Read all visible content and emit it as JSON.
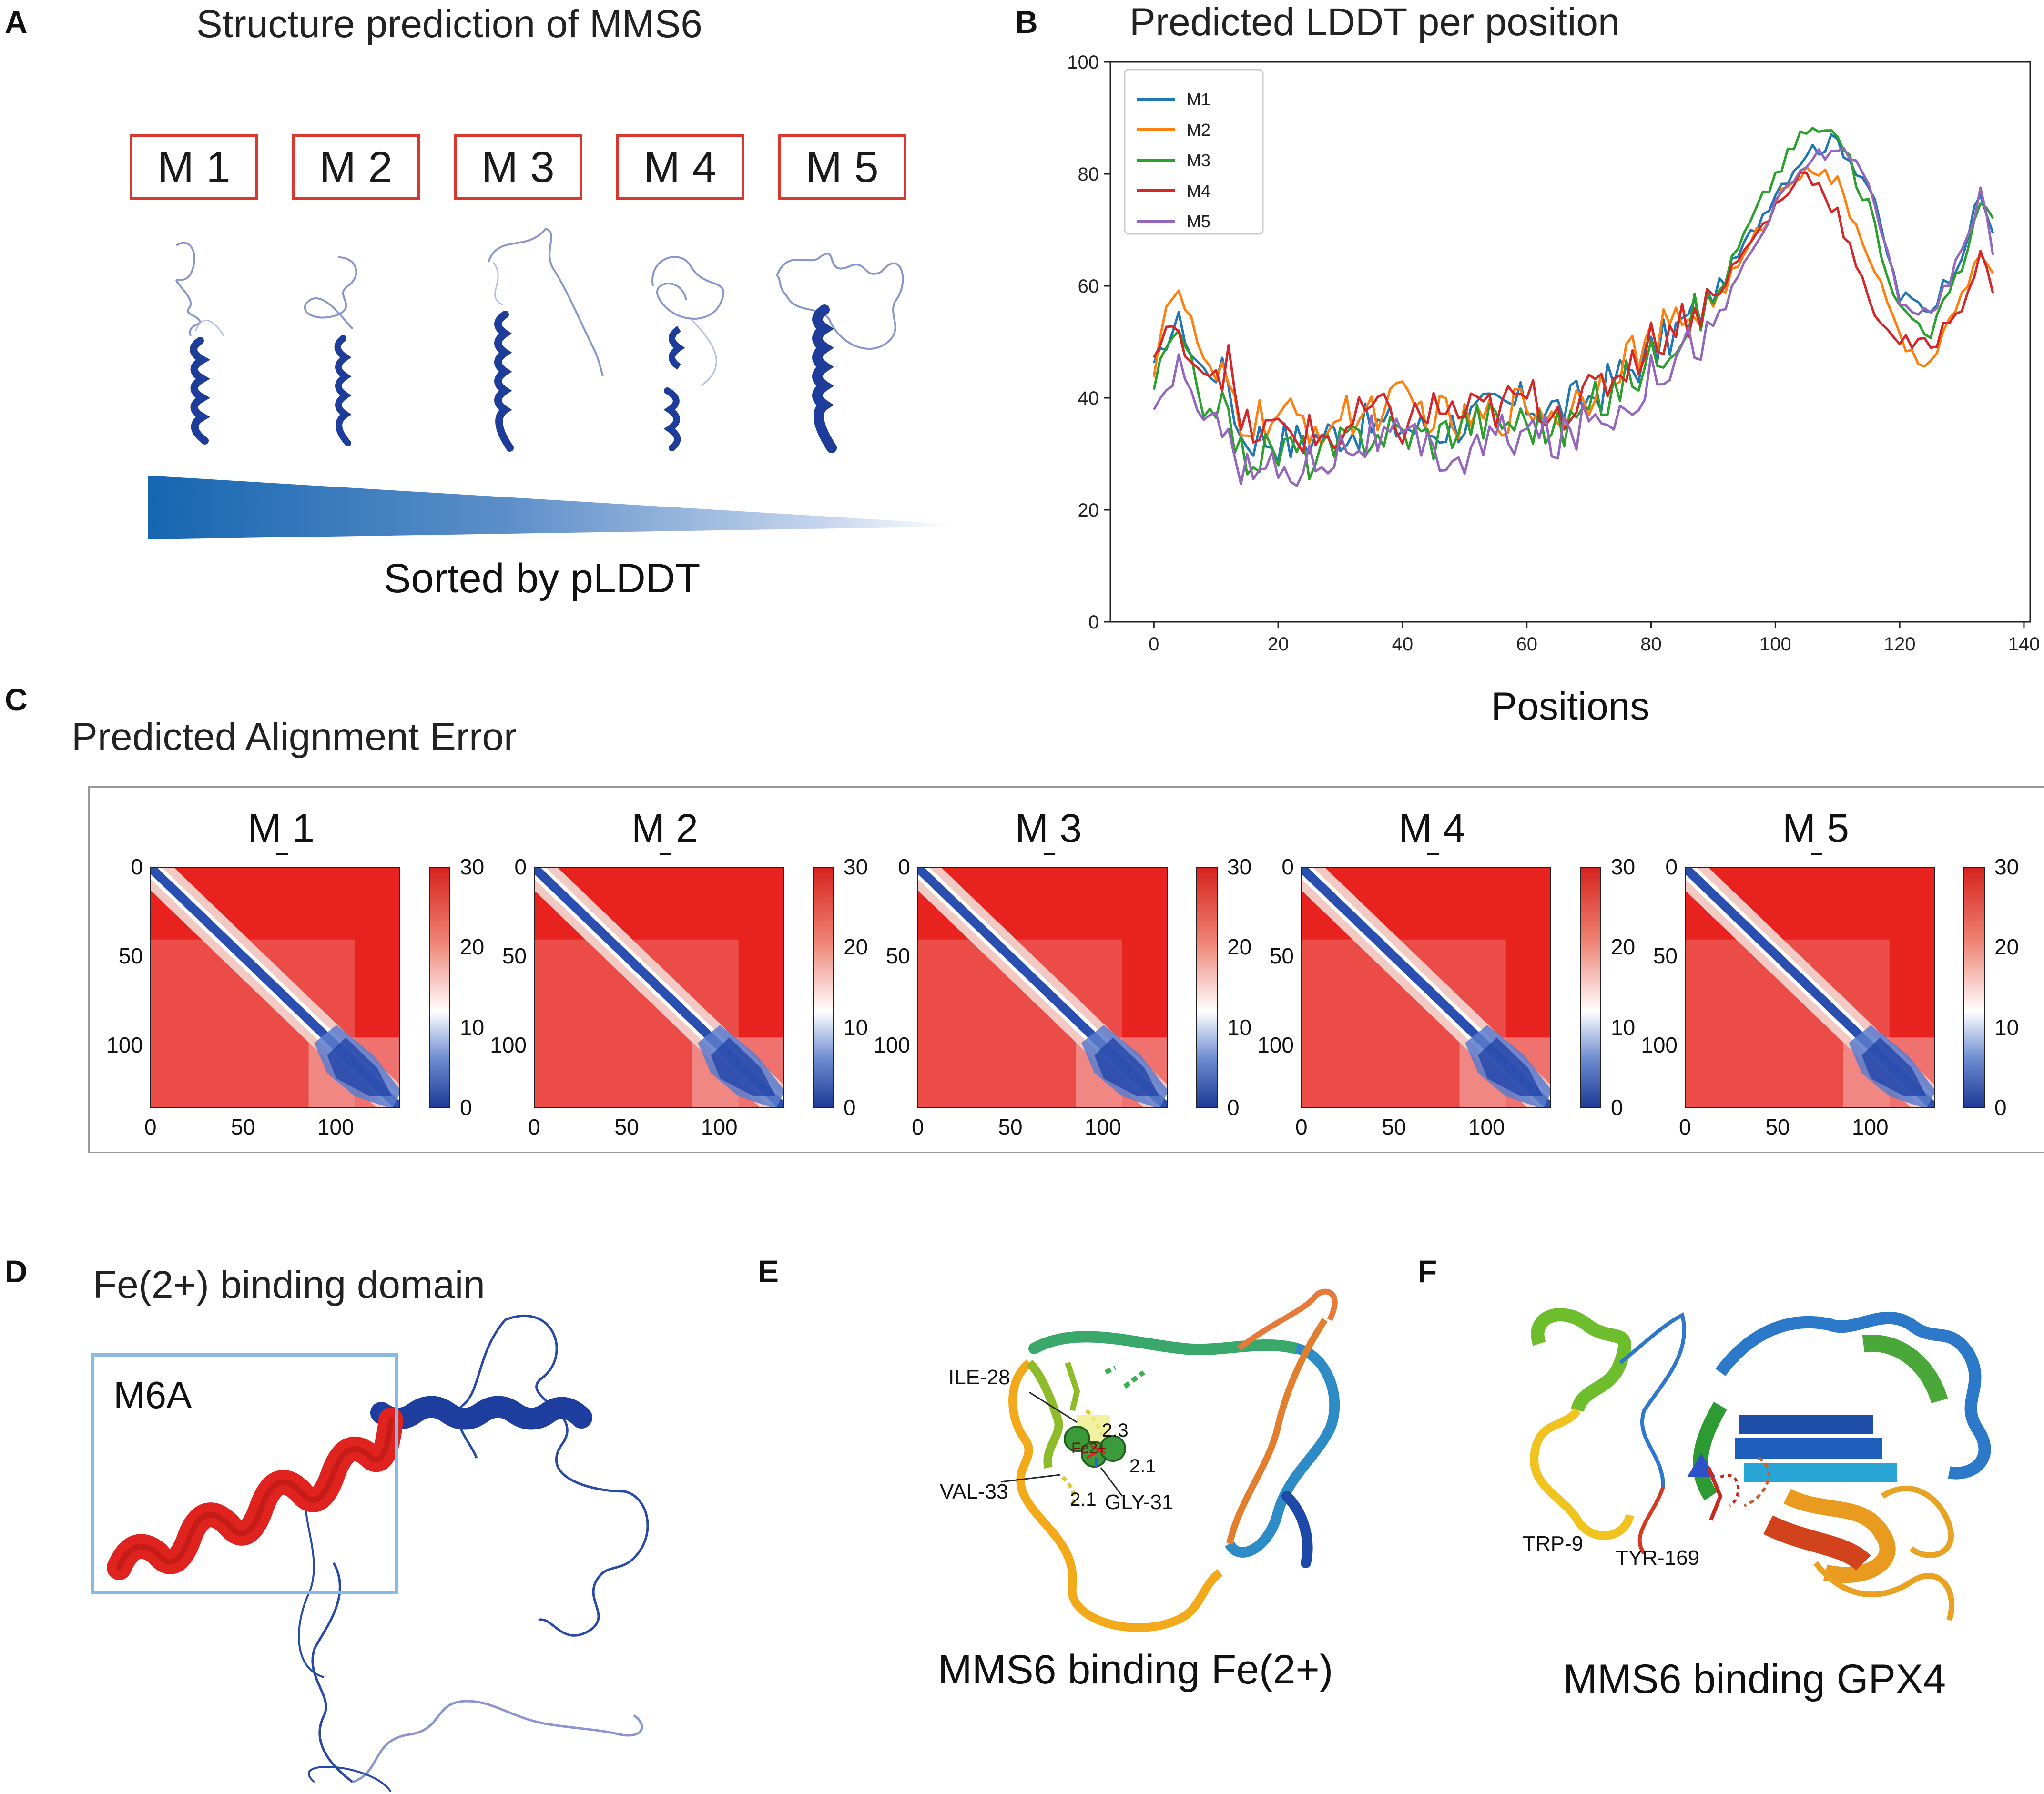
{
  "panels": {
    "A": {
      "letter": "A",
      "title": "Structure prediction of MMS6",
      "models": [
        "M 1",
        "M 2",
        "M 3",
        "M 4",
        "M 5"
      ],
      "caption": "Sorted by pLDDT"
    },
    "B": {
      "letter": "B",
      "title": "Predicted LDDT per position"
    },
    "C": {
      "letter": "C",
      "title": "Predicted Alignment Error"
    },
    "D": {
      "letter": "D",
      "title": "Fe(2+) binding domain",
      "box_label": "M6A"
    },
    "E": {
      "letter": "E",
      "caption": "MMS6 binding Fe(2+)",
      "labels": [
        "ILE-28",
        "VAL-33",
        "GLY-31",
        "2.3",
        "2.1",
        "2.1",
        "Fe2+"
      ]
    },
    "F": {
      "letter": "F",
      "caption": "MMS6 binding GPX4",
      "labels": [
        "TRP-9",
        "TYR-169"
      ]
    }
  },
  "chart_data": [
    {
      "type": "line",
      "title": "Predicted LDDT per position",
      "xlabel": "Positions",
      "ylabel": "",
      "xlim": [
        -7,
        141
      ],
      "ylim": [
        0,
        100
      ],
      "xticks": [
        0,
        20,
        40,
        60,
        80,
        100,
        120,
        140
      ],
      "yticks": [
        0,
        20,
        40,
        60,
        80,
        100
      ],
      "legend_position": "top-left",
      "anchors_x": [
        0,
        2,
        4,
        6,
        8,
        10,
        12,
        14,
        18,
        22,
        26,
        30,
        35,
        40,
        45,
        50,
        55,
        60,
        65,
        70,
        75,
        80,
        85,
        90,
        95,
        100,
        105,
        110,
        115,
        120,
        125,
        130,
        133,
        135
      ],
      "series": [
        {
          "name": "M1",
          "color": "#1f77b4",
          "values": [
            45,
            50,
            54,
            48,
            45,
            44,
            43,
            33,
            33,
            32,
            33,
            34,
            35,
            35,
            34,
            36,
            38,
            39,
            38,
            40,
            44,
            48,
            53,
            58,
            67,
            77,
            84,
            86,
            78,
            58,
            56,
            66,
            76,
            70
          ]
        },
        {
          "name": "M2",
          "color": "#ff7f0e",
          "values": [
            45,
            57,
            58,
            54,
            46,
            43,
            42,
            36,
            36,
            36,
            35,
            36,
            38,
            39,
            37,
            35,
            37,
            39,
            37,
            41,
            47,
            50,
            54,
            57,
            65,
            75,
            82,
            78,
            66,
            50,
            46,
            58,
            66,
            62
          ]
        },
        {
          "name": "M3",
          "color": "#2ca02c",
          "values": [
            42,
            49,
            51,
            46,
            38,
            38,
            36,
            30,
            30,
            31,
            29,
            31,
            34,
            34,
            33,
            36,
            36,
            36,
            34,
            38,
            42,
            47,
            53,
            57,
            69,
            80,
            88,
            87,
            74,
            56,
            52,
            63,
            76,
            71
          ]
        },
        {
          "name": "M4",
          "color": "#d62728",
          "values": [
            47,
            52,
            51,
            47,
            45,
            45,
            46,
            34,
            34,
            34,
            33,
            33,
            38,
            35,
            38,
            37,
            38,
            40,
            38,
            40,
            45,
            50,
            54,
            58,
            66,
            74,
            81,
            73,
            57,
            50,
            49,
            57,
            65,
            60
          ]
        },
        {
          "name": "M5",
          "color": "#9467bd",
          "values": [
            37,
            40,
            47,
            41,
            36,
            36,
            38,
            27,
            27,
            27,
            29,
            31,
            33,
            32,
            30,
            29,
            33,
            34,
            32,
            36,
            38,
            44,
            49,
            52,
            64,
            74,
            82,
            85,
            78,
            58,
            54,
            66,
            77,
            66
          ]
        }
      ]
    },
    {
      "type": "heatmap",
      "title": "Predicted Alignment Error",
      "subplots": [
        "M_1",
        "M_2",
        "M_3",
        "M_4",
        "M_5"
      ],
      "matrix_size": 135,
      "x_ticks": [
        0,
        50,
        100
      ],
      "y_ticks": [
        0,
        50,
        100
      ],
      "colorbar_ticks": [
        30,
        20,
        10,
        0
      ],
      "colorbar_range": [
        0,
        30
      ],
      "colormap": "bwr"
    }
  ]
}
